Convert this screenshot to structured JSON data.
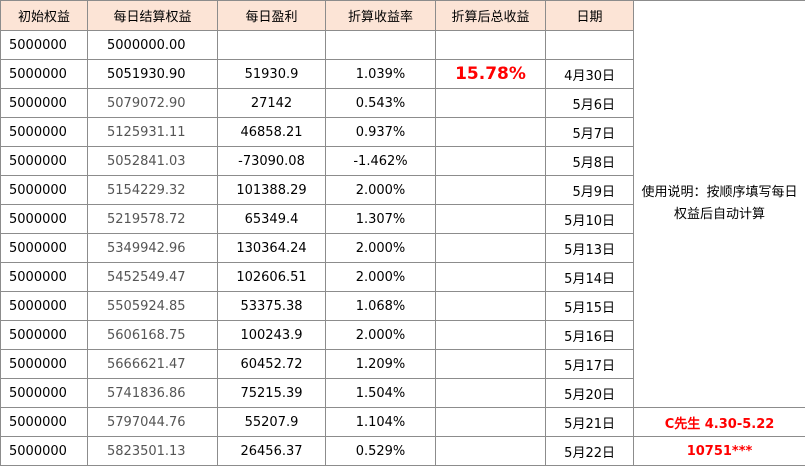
{
  "table": {
    "headers": [
      "初始权益",
      "每日结算权益",
      "每日盈利",
      "折算收益率",
      "折算后总收益",
      "日期"
    ],
    "rows": [
      [
        "5000000",
        "5000000.00",
        null,
        null,
        null,
        null
      ],
      [
        "5000000",
        "5051930.90",
        "51930.9",
        "1.039%",
        "15.78%",
        "4月30日"
      ],
      [
        "5000000",
        "5079072.90",
        "27142",
        "0.543%",
        null,
        "5月6日"
      ],
      [
        "5000000",
        "5125931.11",
        "46858.21",
        "0.937%",
        null,
        "5月7日"
      ],
      [
        "5000000",
        "5052841.03",
        "-73090.08",
        "-1.462%",
        null,
        "5月8日"
      ],
      [
        "5000000",
        "5154229.32",
        "101388.29",
        "2.000%",
        null,
        "5月9日"
      ],
      [
        "5000000",
        "5219578.72",
        "65349.4",
        "1.307%",
        null,
        "5月10日"
      ],
      [
        "5000000",
        "5349942.96",
        "130364.24",
        "2.000%",
        null,
        "5月13日"
      ],
      [
        "5000000",
        "5452549.47",
        "102606.51",
        "2.000%",
        null,
        "5月14日"
      ],
      [
        "5000000",
        "5505924.85",
        "53375.38",
        "1.068%",
        null,
        "5月15日"
      ],
      [
        "5000000",
        "5606168.75",
        "100243.9",
        "2.000%",
        null,
        "5月16日"
      ],
      [
        "5000000",
        "5666621.47",
        "60452.72",
        "1.209%",
        null,
        "5月17日"
      ],
      [
        "5000000",
        "5741836.86",
        "75215.39",
        "1.504%",
        null,
        "5月20日"
      ],
      [
        "5000000",
        "5797044.76",
        "55207.9",
        "1.104%",
        null,
        "5月21日"
      ],
      [
        "5000000",
        "5823501.13",
        "26456.37",
        "0.529%",
        null,
        "5月22日"
      ]
    ],
    "side": {
      "note": "使用说明：按顺序填写每日权益后自动计算",
      "client": "C先生 4.30-5.22",
      "account": "10751***"
    }
  }
}
